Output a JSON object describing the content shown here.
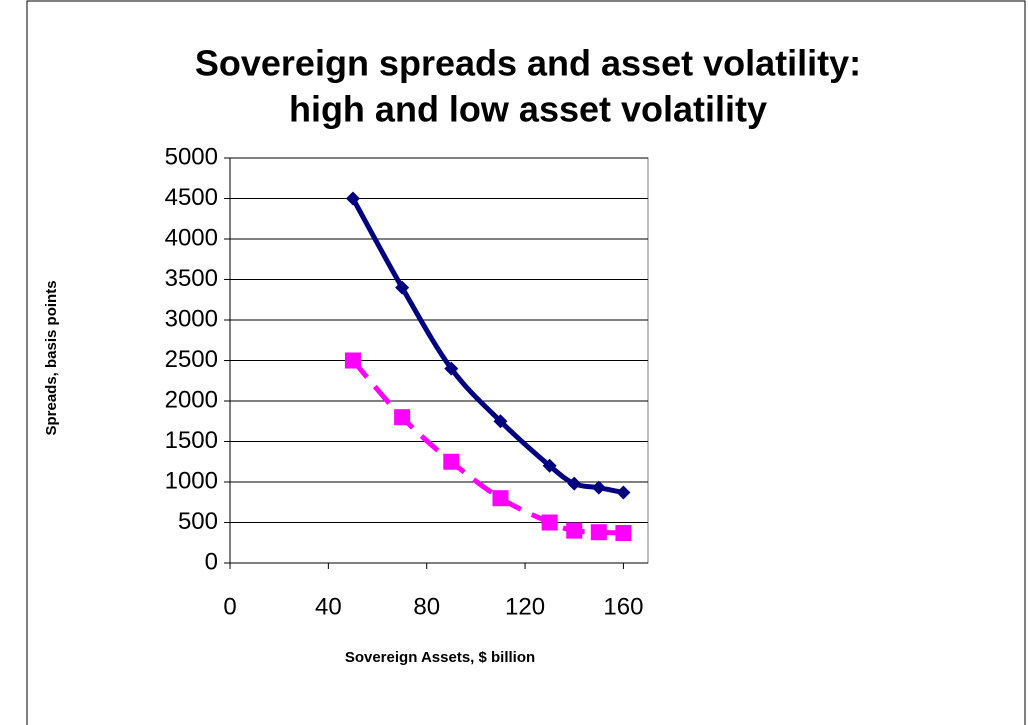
{
  "chart_data": {
    "type": "line",
    "title": [
      "Sovereign spreads and asset volatility:",
      "high and low asset volatility"
    ],
    "x_label": "Sovereign Assets, $ billion",
    "y_label": "Spreads, basis points",
    "x": [
      50,
      70,
      90,
      110,
      130,
      140,
      150,
      160
    ],
    "series": [
      {
        "color": "#000080",
        "marker": "diamond",
        "dash": false,
        "values": [
          4500,
          3400,
          2400,
          1750,
          1200,
          980,
          930,
          870
        ]
      },
      {
        "color": "#ff00ff",
        "marker": "square",
        "dash": true,
        "values": [
          2500,
          1800,
          1250,
          800,
          500,
          400,
          380,
          370
        ]
      }
    ],
    "xlim": [
      0,
      170
    ],
    "xticks": [
      0,
      40,
      80,
      120,
      160
    ],
    "ylim": [
      0,
      5000
    ],
    "yticks": [
      0,
      500,
      1000,
      1500,
      2000,
      2500,
      3000,
      3500,
      4000,
      4500,
      5000
    ],
    "grid": true
  }
}
